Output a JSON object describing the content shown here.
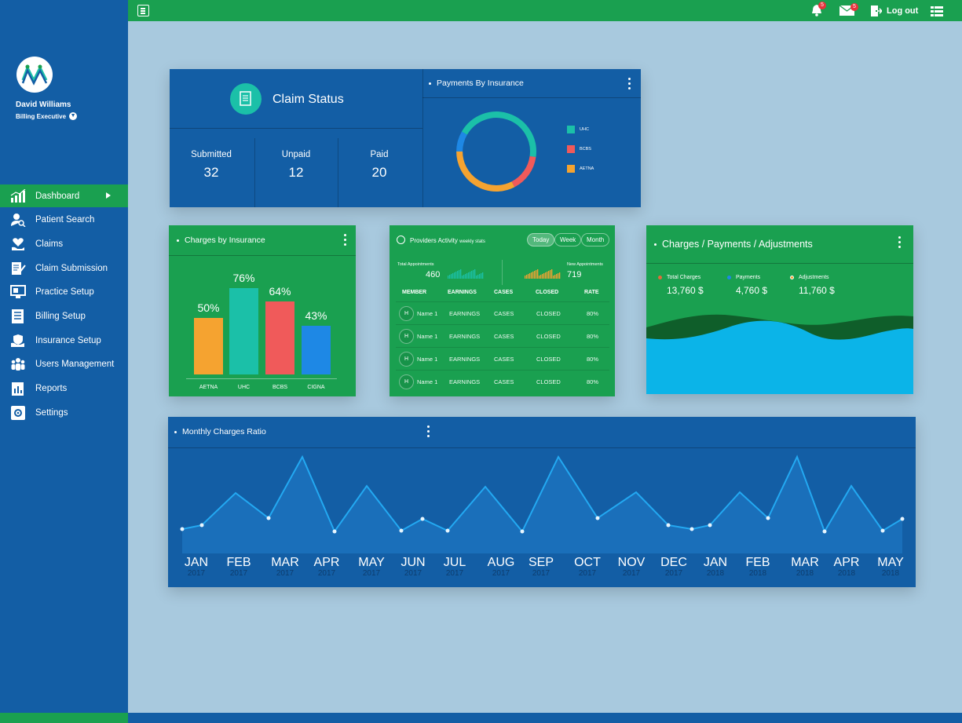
{
  "user": {
    "name": "David Williams",
    "role": "Billing Executive"
  },
  "nav": [
    {
      "label": "Dashboard",
      "icon": "bar-chart-icon",
      "active": true
    },
    {
      "label": "Patient Search",
      "icon": "user-search-icon"
    },
    {
      "label": "Claims",
      "icon": "heart-hand-icon"
    },
    {
      "label": "Claim Submission",
      "icon": "document-edit-icon"
    },
    {
      "label": "Practice Setup",
      "icon": "monitor-icon"
    },
    {
      "label": "Billing Setup",
      "icon": "list-document-icon"
    },
    {
      "label": "Insurance Setup",
      "icon": "shield-hand-icon"
    },
    {
      "label": "Users Management",
      "icon": "users-icon"
    },
    {
      "label": "Reports",
      "icon": "report-icon"
    },
    {
      "label": "Settings",
      "icon": "settings-icon"
    }
  ],
  "topbar": {
    "notifications_count": "5",
    "messages_count": "5",
    "logout_label": "Log out"
  },
  "claim_status": {
    "title": "Claim Status",
    "stats": [
      {
        "label": "Submitted",
        "value": "32"
      },
      {
        "label": "Unpaid",
        "value": "12"
      },
      {
        "label": "Paid",
        "value": "20"
      }
    ]
  },
  "payments_by_insurance": {
    "title": "Payments By Insurance",
    "legend": [
      {
        "label": "UHC",
        "color": "#1bc0a8"
      },
      {
        "label": "BCBS",
        "color": "#f05a5a"
      },
      {
        "label": "AETNA",
        "color": "#f5a330"
      }
    ]
  },
  "charges_by_insurance": {
    "title": "Charges by Insurance",
    "bars": [
      {
        "label": "AETNA",
        "value": 50,
        "display": "50%",
        "color": "#f5a330"
      },
      {
        "label": "UHC",
        "value": 76,
        "display": "76%",
        "color": "#1bc0a8"
      },
      {
        "label": "BCBS",
        "value": 64,
        "display": "64%",
        "color": "#f05a5a"
      },
      {
        "label": "CIGNA",
        "value": 43,
        "display": "43%",
        "color": "#1e88e5"
      }
    ]
  },
  "providers": {
    "title": "Providers Activity",
    "subtitle": "weekly stats",
    "filters": [
      "Today",
      "Week",
      "Month"
    ],
    "total_label": "Total Appointments",
    "total_value": "460",
    "new_label": "New Appointments",
    "new_value": "719",
    "columns": [
      "MEMBER",
      "EARNINGS",
      "CASES",
      "CLOSED",
      "RATE"
    ],
    "rows": [
      {
        "avatar": "H",
        "name": "Name 1",
        "earnings": "EARNINGS",
        "cases": "CASES",
        "closed": "CLOSED",
        "rate": "80%"
      },
      {
        "avatar": "H",
        "name": "Name 1",
        "earnings": "EARNINGS",
        "cases": "CASES",
        "closed": "CLOSED",
        "rate": "80%"
      },
      {
        "avatar": "H",
        "name": "Name 1",
        "earnings": "EARNINGS",
        "cases": "CASES",
        "closed": "CLOSED",
        "rate": "80%"
      },
      {
        "avatar": "H",
        "name": "Name 1",
        "earnings": "EARNINGS",
        "cases": "CASES",
        "closed": "CLOSED",
        "rate": "80%"
      }
    ]
  },
  "cpa": {
    "title": "Charges / Payments / Adjustments",
    "items": [
      {
        "label": "Total Charges",
        "value": "13,760 $",
        "color": "#e06b3a"
      },
      {
        "label": "Payments",
        "value": "4,760 $",
        "color": "#1e88e5"
      },
      {
        "label": "Adjustments",
        "value": "11,760 $",
        "color": "#f5a330"
      }
    ]
  },
  "monthly": {
    "title": "Monthly Charges Ratio",
    "months": [
      {
        "m": "JAN",
        "y": "2017"
      },
      {
        "m": "FEB",
        "y": "2017"
      },
      {
        "m": "MAR",
        "y": "2017"
      },
      {
        "m": "APR",
        "y": "2017"
      },
      {
        "m": "MAY",
        "y": "2017"
      },
      {
        "m": "JUN",
        "y": "2017"
      },
      {
        "m": "JUL",
        "y": "2017"
      },
      {
        "m": "AUG",
        "y": "2017"
      },
      {
        "m": "SEP",
        "y": "2017"
      },
      {
        "m": "OCT",
        "y": "2017"
      },
      {
        "m": "NOV",
        "y": "2017"
      },
      {
        "m": "DEC",
        "y": "2017"
      },
      {
        "m": "JAN",
        "y": "2018"
      },
      {
        "m": "FEB",
        "y": "2018"
      },
      {
        "m": "MAR",
        "y": "2018"
      },
      {
        "m": "APR",
        "y": "2018"
      },
      {
        "m": "MAY",
        "y": "2018"
      }
    ]
  }
}
